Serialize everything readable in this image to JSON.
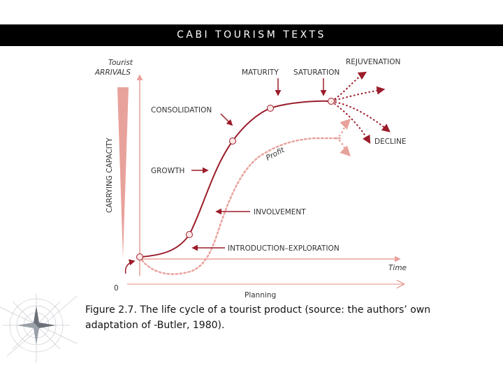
{
  "header": {
    "title": "CABI TOURISM TEXTS"
  },
  "diagram": {
    "y_axis_label_line1": "Tourist",
    "y_axis_label_line2": "ARRIVALS",
    "x_axis_label": "Time",
    "origin_label": "0",
    "planning_label": "Planning",
    "capacity_label": "CARRYING CAPACITY",
    "profit_label": "Profit",
    "stages": {
      "maturity": "MATURITY",
      "saturation": "SATURATION",
      "rejuvenation": "REJUVENATION",
      "consolidation": "CONSOLIDATION",
      "decline": "DECLINE",
      "growth": "GROWTH",
      "involvement": "INVOLVEMENT",
      "introduction": "INTRODUCTION–EXPLORATION"
    },
    "colors": {
      "arrivals_curve": "#9b1c2a",
      "profit_curve": "#e8a29c",
      "axis": "#e8a29c"
    }
  },
  "caption": {
    "line1": "Figure 2.7. The life cycle of a tourist product (source: the authors’ own",
    "line2": "adaptation of -Butler, 1980)."
  }
}
